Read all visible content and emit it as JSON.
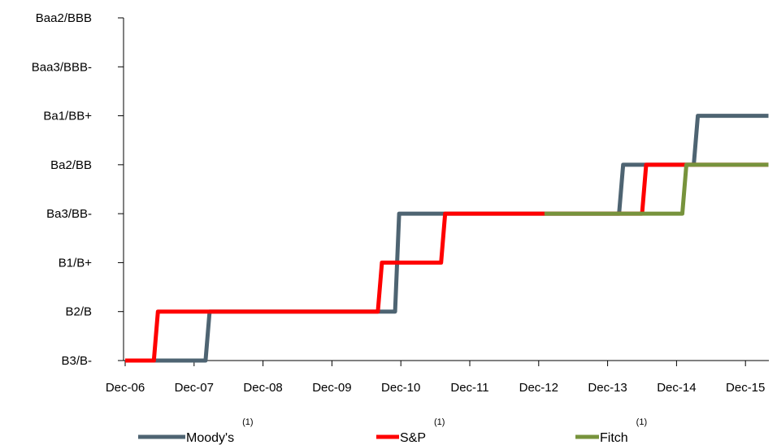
{
  "chart_data": {
    "type": "line",
    "step": true,
    "x_ticks": [
      "Dec-06",
      "Dec-07",
      "Dec-08",
      "Dec-09",
      "Dec-10",
      "Dec-11",
      "Dec-12",
      "Dec-13",
      "Dec-14",
      "Dec-15"
    ],
    "y_ticks": [
      "B3/B-",
      "B2/B",
      "B1/B+",
      "Ba3/BB-",
      "Ba2/BB",
      "Ba1/BB+",
      "Baa3/BBB-",
      "Baa2/BBB"
    ],
    "x_range": [
      "2006-12",
      "2016-04"
    ],
    "grid": false,
    "legend_position": "bottom",
    "series": [
      {
        "name": "Moody's",
        "superscript": "(1)",
        "color": "#4e6472",
        "points": [
          [
            "2006-12",
            "B3/B-"
          ],
          [
            "2008-02",
            "B3/B-"
          ],
          [
            "2008-02",
            "B2/B"
          ],
          [
            "2010-11",
            "B2/B"
          ],
          [
            "2010-11",
            "Ba3/BB-"
          ],
          [
            "2014-02",
            "Ba3/BB-"
          ],
          [
            "2014-02",
            "Ba2/BB"
          ],
          [
            "2015-03",
            "Ba2/BB"
          ],
          [
            "2015-03",
            "Ba1/BB+"
          ],
          [
            "2016-04",
            "Ba1/BB+"
          ]
        ]
      },
      {
        "name": "S&P",
        "superscript": "(1)",
        "color": "#ff0000",
        "points": [
          [
            "2006-12",
            "B3/B-"
          ],
          [
            "2007-05",
            "B3/B-"
          ],
          [
            "2007-05",
            "B2/B"
          ],
          [
            "2010-08",
            "B2/B"
          ],
          [
            "2010-08",
            "B1/B+"
          ],
          [
            "2011-07",
            "B1/B+"
          ],
          [
            "2011-07",
            "Ba3/BB-"
          ],
          [
            "2014-06",
            "Ba3/BB-"
          ],
          [
            "2014-06",
            "Ba2/BB"
          ],
          [
            "2016-04",
            "Ba2/BB"
          ]
        ]
      },
      {
        "name": "Fitch",
        "superscript": "(1)",
        "color": "#77933c",
        "points": [
          [
            "2013-01",
            "Ba3/BB-"
          ],
          [
            "2015-01",
            "Ba3/BB-"
          ],
          [
            "2015-01",
            "Ba2/BB"
          ],
          [
            "2016-04",
            "Ba2/BB"
          ]
        ]
      }
    ]
  }
}
